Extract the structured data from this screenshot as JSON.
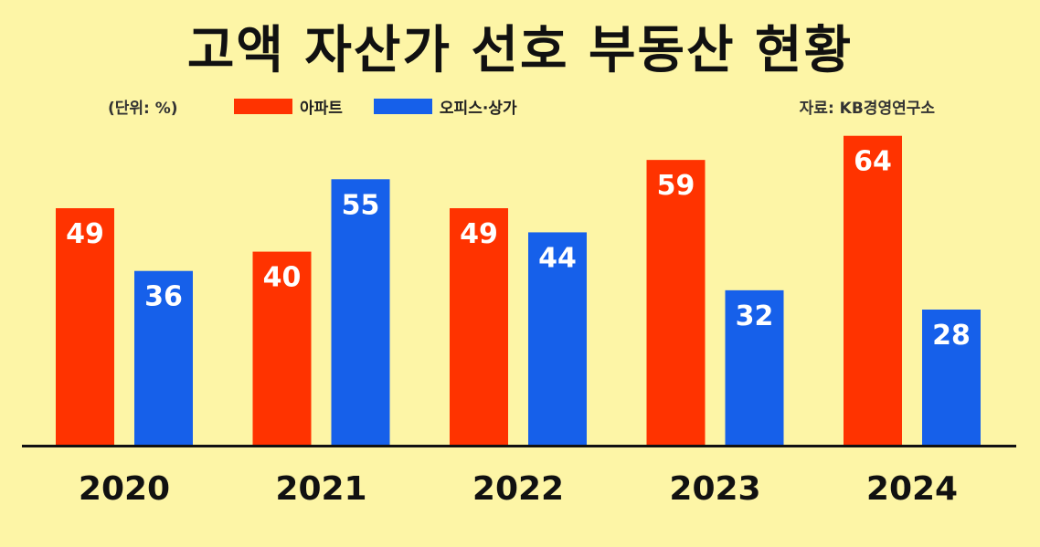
{
  "chart_data": {
    "type": "bar",
    "title": "고액 자산가 선호 부동산 현황",
    "unit_note": "(단위: %)",
    "source": "자료: KB경영연구소",
    "categories": [
      "2020",
      "2021",
      "2022",
      "2023",
      "2024"
    ],
    "series": [
      {
        "name": "아파트",
        "color": "#FF3300",
        "values": [
          49,
          40,
          49,
          59,
          64
        ]
      },
      {
        "name": "오피스·상가",
        "color": "#1660EA",
        "values": [
          36,
          55,
          44,
          32,
          28
        ]
      }
    ],
    "ylim": [
      0,
      70
    ],
    "grid": false,
    "legend": "top"
  }
}
